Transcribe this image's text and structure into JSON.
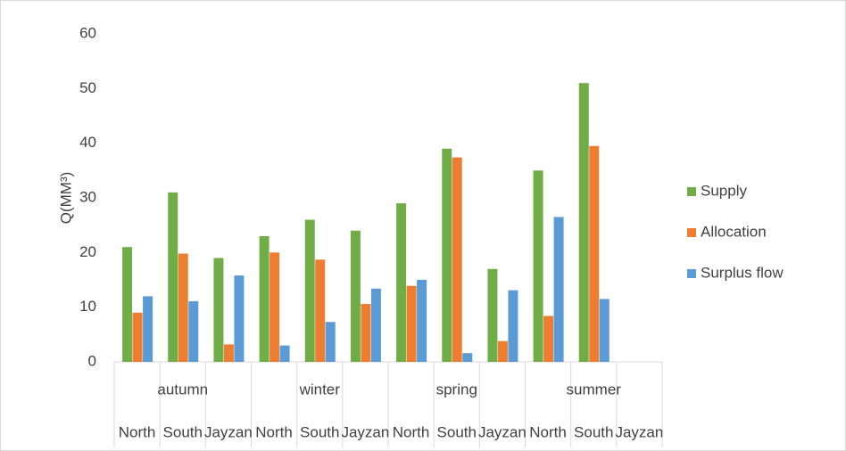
{
  "chart_data": {
    "type": "bar",
    "y_label": "Q(MM³)",
    "groups": [
      "autumn",
      "winter",
      "spring",
      "summer"
    ],
    "categories": [
      "North",
      "South",
      "Jayzan",
      "North",
      "South",
      "Jayzan",
      "North",
      "South",
      "Jayzan",
      "North",
      "South",
      "Jayzan"
    ],
    "series": [
      {
        "name": "Supply",
        "color": "#70ad47",
        "values": [
          21,
          31,
          19,
          23,
          26,
          24,
          29,
          39,
          17,
          35,
          51,
          null
        ]
      },
      {
        "name": "Allocation",
        "color": "#ed7d31",
        "values": [
          9,
          19.8,
          3.2,
          20,
          18.7,
          10.6,
          13.9,
          37.4,
          3.8,
          8.4,
          39.5,
          null
        ]
      },
      {
        "name": "Surplus flow",
        "color": "#5b9bd5",
        "values": [
          12,
          11.1,
          15.8,
          3,
          7.3,
          13.4,
          15,
          1.6,
          13.1,
          26.5,
          11.5,
          null
        ]
      }
    ],
    "ylim": [
      0,
      60
    ],
    "yticks": [
      0,
      10,
      20,
      30,
      40,
      50,
      60
    ],
    "grid": false,
    "legend": "right"
  }
}
